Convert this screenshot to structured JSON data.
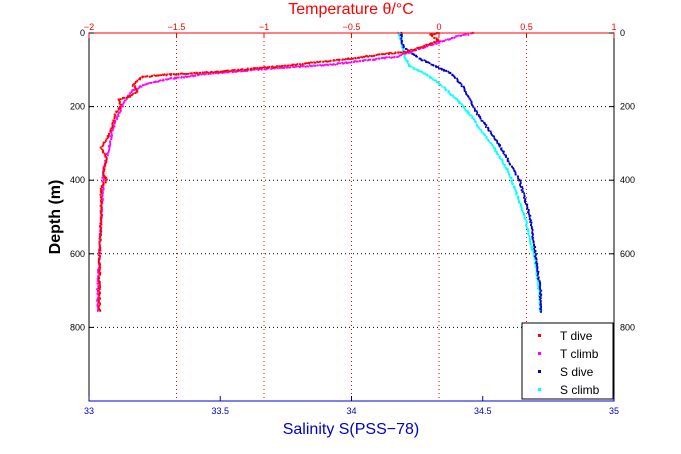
{
  "chart_data": {
    "type": "scatter",
    "top_axis": {
      "title": "Temperature θ/°C",
      "range": [
        -2,
        1
      ],
      "ticks": [
        -2,
        -1.5,
        -1,
        -0.5,
        0,
        0.5,
        1
      ],
      "tick_labels": [
        "−2",
        "−1.5",
        "−1",
        "−0.5",
        "0",
        "0.5",
        "1"
      ],
      "color": "#ff0000"
    },
    "bottom_axis": {
      "title": "Salinity S(PSS−78)",
      "range": [
        33,
        35
      ],
      "ticks": [
        33,
        33.5,
        34,
        34.5,
        35
      ],
      "tick_labels": [
        "33",
        "33.5",
        "34",
        "34.5",
        "35"
      ],
      "color": "#0000cc"
    },
    "y_axis": {
      "title": "Depth (m)",
      "range": [
        0,
        1000
      ],
      "reversed": true,
      "ticks": [
        0,
        200,
        400,
        600,
        800
      ],
      "tick_labels": [
        "0",
        "200",
        "400",
        "600",
        "800"
      ]
    },
    "grid": "dotted",
    "legend": {
      "position": "bottom-right",
      "entries": [
        "T dive",
        "T climb",
        "S dive",
        "S climb"
      ]
    },
    "series": [
      {
        "name": "T dive",
        "axis": "temperature",
        "color": "#ff0000",
        "points": [
          [
            0,
            0
          ],
          [
            -0.05,
            5
          ],
          [
            -0.03,
            12
          ],
          [
            0,
            20
          ],
          [
            -0.08,
            35
          ],
          [
            -0.18,
            50
          ],
          [
            -0.35,
            60
          ],
          [
            -0.6,
            75
          ],
          [
            -0.9,
            90
          ],
          [
            -1.25,
            105
          ],
          [
            -1.6,
            115
          ],
          [
            -1.7,
            120
          ],
          [
            -1.75,
            140
          ],
          [
            -1.72,
            160
          ],
          [
            -1.78,
            175
          ],
          [
            -1.83,
            180
          ],
          [
            -1.82,
            200
          ],
          [
            -1.85,
            220
          ],
          [
            -1.87,
            260
          ],
          [
            -1.9,
            290
          ],
          [
            -1.93,
            310
          ],
          [
            -1.9,
            340
          ],
          [
            -1.92,
            380
          ],
          [
            -1.9,
            400
          ],
          [
            -1.93,
            420
          ],
          [
            -1.93,
            500
          ],
          [
            -1.94,
            600
          ],
          [
            -1.94,
            700
          ],
          [
            -1.94,
            760
          ]
        ]
      },
      {
        "name": "T climb",
        "axis": "temperature",
        "color": "#ff00ff",
        "points": [
          [
            0.2,
            0
          ],
          [
            0.15,
            5
          ],
          [
            0.1,
            10
          ],
          [
            -0.03,
            30
          ],
          [
            -0.25,
            65
          ],
          [
            -0.6,
            85
          ],
          [
            -1,
            98
          ],
          [
            -1.3,
            110
          ],
          [
            -1.55,
            125
          ],
          [
            -1.68,
            140
          ],
          [
            -1.76,
            160
          ],
          [
            -1.8,
            190
          ],
          [
            -1.82,
            210
          ],
          [
            -1.85,
            240
          ],
          [
            -1.87,
            270
          ],
          [
            -1.88,
            300
          ],
          [
            -1.9,
            340
          ],
          [
            -1.92,
            380
          ],
          [
            -1.92,
            420
          ],
          [
            -1.93,
            500
          ],
          [
            -1.94,
            600
          ],
          [
            -1.95,
            700
          ],
          [
            -1.95,
            760
          ]
        ]
      },
      {
        "name": "S dive",
        "axis": "salinity",
        "color": "#0000cc",
        "points": [
          [
            34.19,
            0
          ],
          [
            34.19,
            20
          ],
          [
            34.2,
            40
          ],
          [
            34.26,
            70
          ],
          [
            34.32,
            90
          ],
          [
            34.38,
            110
          ],
          [
            34.42,
            140
          ],
          [
            34.45,
            180
          ],
          [
            34.48,
            220
          ],
          [
            34.52,
            260
          ],
          [
            34.56,
            300
          ],
          [
            34.6,
            350
          ],
          [
            34.64,
            400
          ],
          [
            34.66,
            450
          ],
          [
            34.68,
            500
          ],
          [
            34.69,
            550
          ],
          [
            34.7,
            600
          ],
          [
            34.71,
            650
          ],
          [
            34.72,
            700
          ],
          [
            34.72,
            760
          ]
        ]
      },
      {
        "name": "S climb",
        "axis": "salinity",
        "color": "#00ffff",
        "points": [
          [
            34.18,
            0
          ],
          [
            34.19,
            20
          ],
          [
            34.2,
            60
          ],
          [
            34.22,
            90
          ],
          [
            34.28,
            110
          ],
          [
            34.34,
            140
          ],
          [
            34.4,
            180
          ],
          [
            34.45,
            220
          ],
          [
            34.5,
            270
          ],
          [
            34.55,
            320
          ],
          [
            34.6,
            380
          ],
          [
            34.63,
            440
          ],
          [
            34.66,
            500
          ],
          [
            34.68,
            560
          ],
          [
            34.7,
            620
          ],
          [
            34.71,
            680
          ],
          [
            34.72,
            740
          ],
          [
            34.72,
            760
          ]
        ]
      }
    ]
  }
}
